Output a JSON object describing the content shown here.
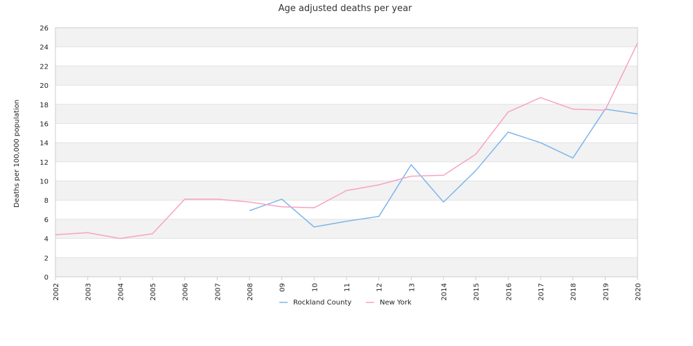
{
  "chart_data": {
    "type": "line",
    "title": "Age adjusted deaths per year",
    "xlabel": "",
    "ylabel": "Deaths per 100,000 population",
    "categories": [
      "2002",
      "2003",
      "2004",
      "2005",
      "2006",
      "2007",
      "2008",
      "09",
      "10",
      "11",
      "12",
      "13",
      "2014",
      "2015",
      "2016",
      "2017",
      "2018",
      "2019",
      "2020"
    ],
    "ylim": [
      0,
      26
    ],
    "yticks": [
      0,
      2,
      4,
      6,
      8,
      10,
      12,
      14,
      16,
      18,
      20,
      22,
      24,
      26
    ],
    "grid": "horizontal bands",
    "legend_position": "bottom",
    "series": [
      {
        "name": "Rockland County",
        "color": "#7cb5ec",
        "values": [
          null,
          null,
          null,
          null,
          null,
          null,
          6.9,
          8.1,
          5.2,
          5.8,
          6.3,
          11.7,
          7.8,
          11.1,
          15.1,
          14.0,
          12.4,
          17.5,
          17.0
        ]
      },
      {
        "name": "New York",
        "color": "#f7a1c4",
        "values": [
          4.4,
          4.6,
          4.0,
          4.5,
          8.1,
          8.1,
          7.8,
          7.3,
          7.2,
          9.0,
          9.6,
          10.5,
          10.6,
          12.8,
          17.2,
          18.7,
          17.5,
          17.4,
          24.4
        ]
      }
    ]
  }
}
